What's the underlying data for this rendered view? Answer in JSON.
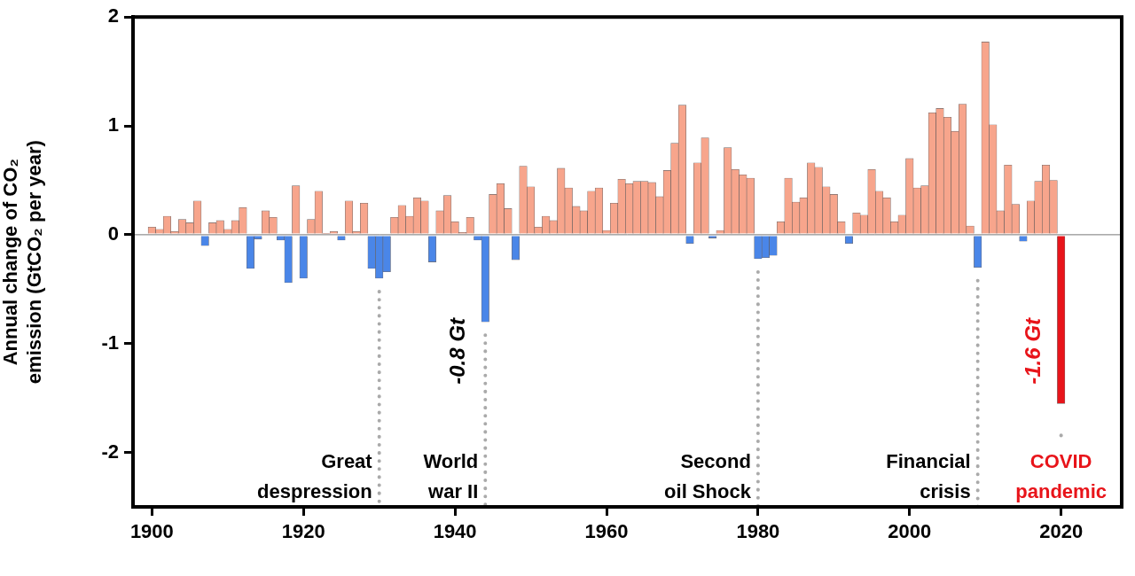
{
  "chart_data": {
    "type": "bar",
    "ylabel": [
      "Annual change of CO₂",
      "emission (GtCO₂ per year)"
    ],
    "x": [
      1900,
      1901,
      1902,
      1903,
      1904,
      1905,
      1906,
      1907,
      1908,
      1909,
      1910,
      1911,
      1912,
      1913,
      1914,
      1915,
      1916,
      1917,
      1918,
      1919,
      1920,
      1921,
      1922,
      1923,
      1924,
      1925,
      1926,
      1927,
      1928,
      1929,
      1930,
      1931,
      1932,
      1933,
      1934,
      1935,
      1936,
      1937,
      1938,
      1939,
      1940,
      1941,
      1942,
      1943,
      1944,
      1945,
      1946,
      1947,
      1948,
      1949,
      1950,
      1951,
      1952,
      1953,
      1954,
      1955,
      1956,
      1957,
      1958,
      1959,
      1960,
      1961,
      1962,
      1963,
      1964,
      1965,
      1966,
      1967,
      1968,
      1969,
      1970,
      1971,
      1972,
      1973,
      1974,
      1975,
      1976,
      1977,
      1978,
      1979,
      1980,
      1981,
      1982,
      1983,
      1984,
      1985,
      1986,
      1987,
      1988,
      1989,
      1990,
      1991,
      1992,
      1993,
      1994,
      1995,
      1996,
      1997,
      1998,
      1999,
      2000,
      2001,
      2002,
      2003,
      2004,
      2005,
      2006,
      2007,
      2008,
      2009,
      2010,
      2011,
      2012,
      2013,
      2014,
      2015,
      2016,
      2017,
      2018,
      2019,
      2020
    ],
    "values": [
      0.07,
      0.05,
      0.17,
      0.03,
      0.14,
      0.11,
      0.31,
      -0.1,
      0.11,
      0.13,
      0.05,
      0.13,
      0.25,
      -0.31,
      -0.04,
      0.22,
      0.16,
      -0.05,
      -0.44,
      0.45,
      -0.4,
      0.14,
      0.4,
      0.01,
      0.03,
      -0.05,
      0.31,
      0.03,
      0.29,
      -0.31,
      -0.4,
      -0.34,
      0.16,
      0.27,
      0.17,
      0.34,
      0.31,
      -0.25,
      0.22,
      0.36,
      0.12,
      0.02,
      0.16,
      -0.05,
      -0.8,
      0.37,
      0.47,
      0.24,
      -0.23,
      0.63,
      0.44,
      0.07,
      0.17,
      0.13,
      0.61,
      0.43,
      0.26,
      0.22,
      0.4,
      0.43,
      0.04,
      0.29,
      0.51,
      0.47,
      0.49,
      0.49,
      0.48,
      0.35,
      0.59,
      0.84,
      1.19,
      -0.08,
      0.66,
      0.89,
      -0.03,
      0.04,
      0.8,
      0.6,
      0.55,
      0.52,
      -0.22,
      -0.21,
      -0.19,
      0.12,
      0.52,
      0.3,
      0.34,
      0.66,
      0.62,
      0.44,
      0.37,
      0.12,
      -0.08,
      0.2,
      0.18,
      0.6,
      0.4,
      0.34,
      0.12,
      0.18,
      0.7,
      0.43,
      0.45,
      1.12,
      1.16,
      1.08,
      0.95,
      1.2,
      0.08,
      -0.3,
      1.77,
      1.01,
      0.22,
      0.64,
      0.28,
      -0.06,
      0.31,
      0.49,
      0.64,
      0.5,
      -1.55
    ],
    "colors": [
      "#f7a58c",
      "#f7a58c",
      "#f7a58c",
      "#f7a58c",
      "#f7a58c",
      "#f7a58c",
      "#f7a58c",
      "#4a86e8",
      "#f7a58c",
      "#f7a58c",
      "#f7a58c",
      "#f7a58c",
      "#f7a58c",
      "#4a86e8",
      "#4a86e8",
      "#f7a58c",
      "#f7a58c",
      "#4a86e8",
      "#4a86e8",
      "#f7a58c",
      "#4a86e8",
      "#f7a58c",
      "#f7a58c",
      "#f7a58c",
      "#f7a58c",
      "#4a86e8",
      "#f7a58c",
      "#f7a58c",
      "#f7a58c",
      "#4a86e8",
      "#4a86e8",
      "#4a86e8",
      "#f7a58c",
      "#f7a58c",
      "#f7a58c",
      "#f7a58c",
      "#f7a58c",
      "#4a86e8",
      "#f7a58c",
      "#f7a58c",
      "#f7a58c",
      "#f7a58c",
      "#f7a58c",
      "#4a86e8",
      "#4a86e8",
      "#f7a58c",
      "#f7a58c",
      "#f7a58c",
      "#4a86e8",
      "#f7a58c",
      "#f7a58c",
      "#f7a58c",
      "#f7a58c",
      "#f7a58c",
      "#f7a58c",
      "#f7a58c",
      "#f7a58c",
      "#f7a58c",
      "#f7a58c",
      "#f7a58c",
      "#f7a58c",
      "#f7a58c",
      "#f7a58c",
      "#f7a58c",
      "#f7a58c",
      "#f7a58c",
      "#f7a58c",
      "#f7a58c",
      "#f7a58c",
      "#f7a58c",
      "#f7a58c",
      "#4a86e8",
      "#f7a58c",
      "#f7a58c",
      "#4a86e8",
      "#f7a58c",
      "#f7a58c",
      "#f7a58c",
      "#f7a58c",
      "#f7a58c",
      "#4a86e8",
      "#4a86e8",
      "#4a86e8",
      "#f7a58c",
      "#f7a58c",
      "#f7a58c",
      "#f7a58c",
      "#f7a58c",
      "#f7a58c",
      "#f7a58c",
      "#f7a58c",
      "#f7a58c",
      "#4a86e8",
      "#f7a58c",
      "#f7a58c",
      "#f7a58c",
      "#f7a58c",
      "#f7a58c",
      "#f7a58c",
      "#f7a58c",
      "#f7a58c",
      "#f7a58c",
      "#f7a58c",
      "#f7a58c",
      "#f7a58c",
      "#f7a58c",
      "#f7a58c",
      "#f7a58c",
      "#f7a58c",
      "#4a86e8",
      "#f7a58c",
      "#f7a58c",
      "#f7a58c",
      "#f7a58c",
      "#f7a58c",
      "#4a86e8",
      "#f7a58c",
      "#f7a58c",
      "#f7a58c",
      "#f7a58c",
      "#e8141a"
    ],
    "xlim": [
      1897.5,
      2028
    ],
    "xticks": [
      1900,
      1920,
      1940,
      1960,
      1980,
      2000,
      2020
    ],
    "ylim": [
      -2.5,
      2
    ],
    "yticks": [
      -2,
      -1,
      0,
      1,
      2
    ],
    "grid": false,
    "annotations": [
      {
        "text": [
          "Great",
          "despression"
        ],
        "x": 1930,
        "color": "#000000"
      },
      {
        "text": [
          "World",
          "war II"
        ],
        "x": 1944,
        "color": "#000000"
      },
      {
        "text": [
          "Second",
          "oil Shock"
        ],
        "x": 1980,
        "color": "#000000"
      },
      {
        "text": [
          "Financial",
          "crisis"
        ],
        "x": 2009,
        "color": "#000000"
      },
      {
        "text": [
          "COVID",
          "pandemic"
        ],
        "x": 2020,
        "color": "#e8141a"
      },
      {
        "text": "-0.8 Gt",
        "x": 1944,
        "color": "#000000"
      },
      {
        "text": "-1.6 Gt",
        "x": 2020,
        "color": "#e8141a"
      }
    ]
  }
}
